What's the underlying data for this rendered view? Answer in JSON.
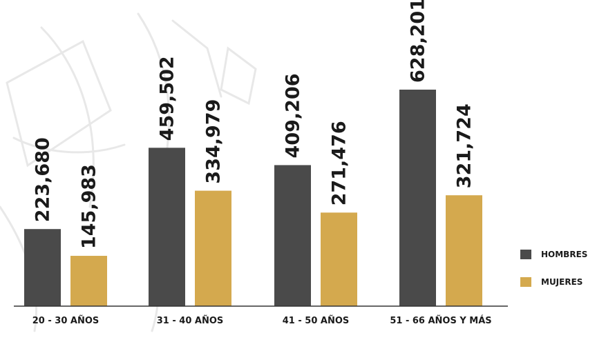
{
  "chart_data": {
    "type": "bar",
    "categories": [
      "20 - 30 AÑOS",
      "31 - 40 AÑOS",
      "41 - 50 AÑOS",
      "51 - 66 AÑOS Y MÁS"
    ],
    "series": [
      {
        "name": "HOMBRES",
        "values": [
          223680,
          459502,
          409206,
          628201
        ],
        "labels": [
          "223,680",
          "459,502",
          "409,206",
          "628,201"
        ],
        "color": "#4a4a4a"
      },
      {
        "name": "MUJERES",
        "values": [
          145983,
          334979,
          271476,
          321724
        ],
        "labels": [
          "145,983",
          "334,979",
          "271,476",
          "321,724"
        ],
        "color": "#d4a94e"
      }
    ],
    "title": "",
    "xlabel": "",
    "ylabel": "",
    "ylim": [
      0,
      700000
    ],
    "grid": false,
    "legend_position": "right"
  },
  "colors": {
    "axis": "#333333",
    "watermark": "#e6e6e6"
  }
}
